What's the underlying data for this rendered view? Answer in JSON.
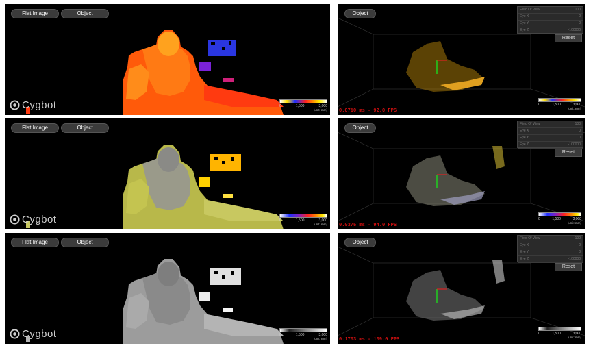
{
  "buttons": {
    "flat_image": "Flat Image",
    "object": "Object",
    "reset": "Reset"
  },
  "logo": {
    "text": "Cygbot"
  },
  "colorbar": {
    "tick_0": "0",
    "tick_1500": "1,500",
    "tick_3000": "3,000",
    "unit": "(unit: mm)"
  },
  "fov_panel": {
    "rows": [
      {
        "label": "Field Of View",
        "value": "100"
      },
      {
        "label": "Eye X",
        "value": "0"
      },
      {
        "label": "Eye Y",
        "value": "0"
      },
      {
        "label": "Eye Z",
        "value": "-100000"
      }
    ]
  },
  "fps": {
    "row0": "0.0710 ms - 92.0 FPS",
    "row1": "0.0375 ms - 94.0 FPS",
    "row2": "0.1703 ms - 109.0 FPS"
  },
  "colors": {
    "heat": "#ff6a00",
    "yellow": "#c8c84a",
    "gray": "#a8a8a8",
    "background": "#000000",
    "fps_text": "#d01010"
  }
}
